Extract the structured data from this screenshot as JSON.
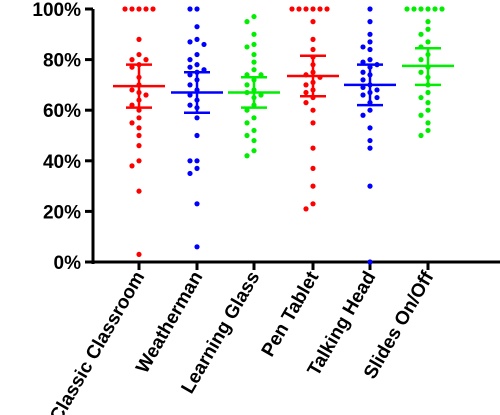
{
  "chart_data": {
    "type": "scatter",
    "subtype": "dot-plot-with-mean-and-error-bars",
    "title": "",
    "xlabel": "",
    "ylabel": "",
    "ylim": [
      0,
      100
    ],
    "y_ticks": [
      0,
      20,
      40,
      60,
      80,
      100
    ],
    "y_tick_labels": [
      "0%",
      "20%",
      "40%",
      "60%",
      "80%",
      "100%"
    ],
    "grid": false,
    "categories": [
      "Classic Classroom",
      "Weatherman",
      "Learning Glass",
      "Pen Tablet",
      "Talking Head",
      "Slides On/Off"
    ],
    "series": [
      {
        "color": "#ff0000",
        "mean": 69.5,
        "error_low": 61,
        "error_high": 78,
        "values": [
          100,
          100,
          100,
          100,
          100,
          88,
          82,
          80,
          80,
          78,
          77,
          73,
          70,
          68,
          67,
          66,
          64,
          62,
          60,
          57,
          55,
          53,
          50,
          46,
          40,
          38,
          28,
          3
        ]
      },
      {
        "color": "#0000ff",
        "mean": 67,
        "error_low": 59,
        "error_high": 75,
        "values": [
          100,
          100,
          93,
          88,
          87,
          86,
          82,
          80,
          78,
          77,
          76,
          75,
          74,
          72,
          70,
          68,
          66,
          64,
          62,
          61,
          57,
          50,
          40,
          40,
          37,
          35,
          23,
          6
        ]
      },
      {
        "color": "#00ee00",
        "mean": 67,
        "error_low": 61,
        "error_high": 73,
        "values": [
          97,
          95,
          90,
          86,
          85,
          82,
          79,
          76,
          74,
          74,
          72,
          70,
          68,
          67,
          66,
          65,
          62,
          60,
          57,
          55,
          52,
          50,
          48,
          44,
          42
        ]
      },
      {
        "color": "#ff0000",
        "mean": 73.5,
        "error_low": 65.5,
        "error_high": 81.5,
        "values": [
          100,
          100,
          100,
          100,
          100,
          100,
          95,
          88,
          84,
          81,
          78,
          75,
          74,
          73,
          71,
          70,
          68,
          67,
          65,
          63,
          60,
          55,
          45,
          37,
          30,
          23,
          21
        ]
      },
      {
        "color": "#0000ff",
        "mean": 70,
        "error_low": 62,
        "error_high": 78,
        "values": [
          100,
          95,
          90,
          87,
          85,
          84,
          80,
          79,
          78,
          77,
          75,
          74,
          72,
          70,
          69,
          68,
          67,
          66,
          65,
          63,
          60,
          58,
          53,
          48,
          45,
          30,
          0
        ]
      },
      {
        "color": "#00ee00",
        "mean": 77.5,
        "error_low": 70,
        "error_high": 84.5,
        "values": [
          100,
          100,
          100,
          100,
          100,
          100,
          95,
          92,
          90,
          87,
          85,
          82,
          80,
          77,
          75,
          73,
          70,
          67,
          65,
          63,
          60,
          58,
          55,
          52,
          50
        ]
      }
    ]
  }
}
